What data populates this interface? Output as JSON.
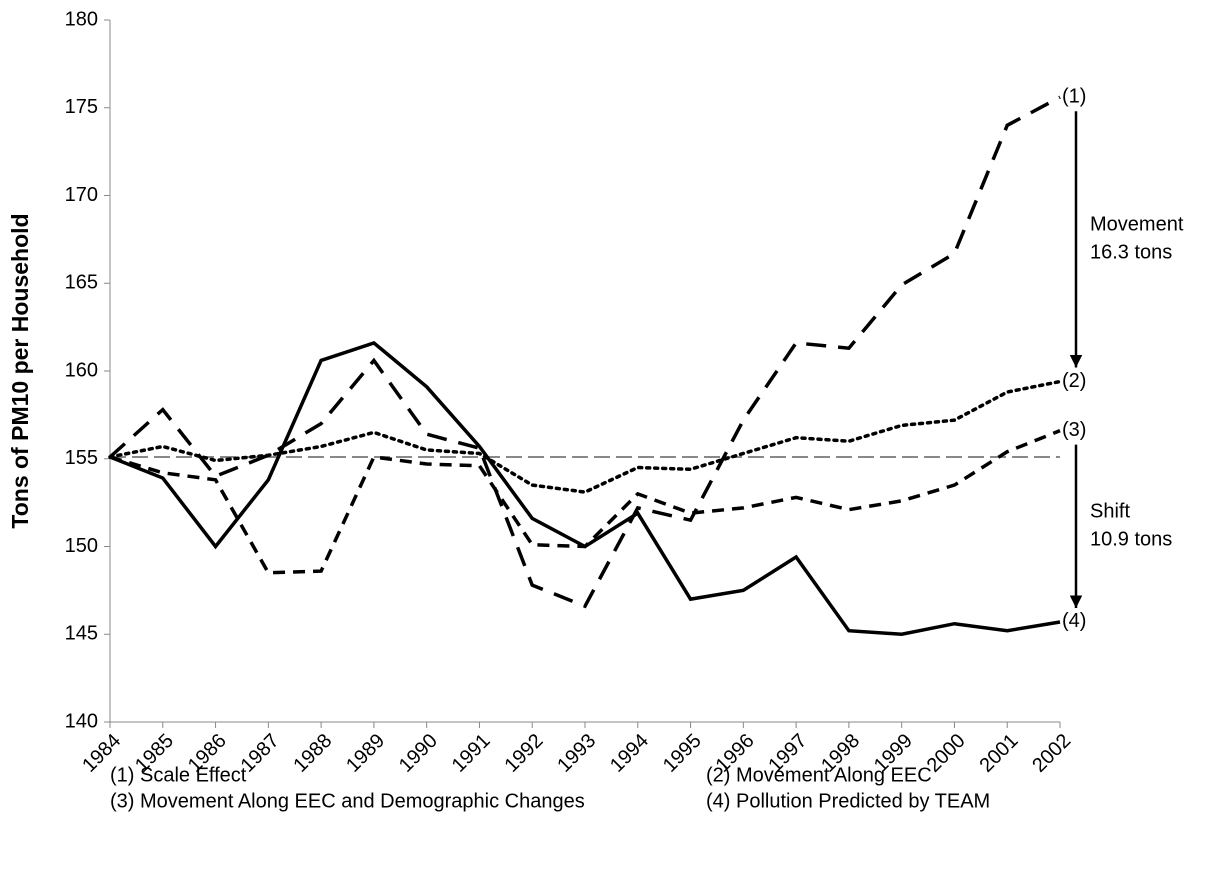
{
  "chart_data": {
    "type": "line",
    "y_label": "Tons of PM10 per Household",
    "categories": [
      "1984",
      "1985",
      "1986",
      "1987",
      "1988",
      "1989",
      "1990",
      "1991",
      "1992",
      "1993",
      "1994",
      "1995",
      "1996",
      "1997",
      "1998",
      "1999",
      "2000",
      "2001",
      "2002"
    ],
    "series": [
      {
        "name": "(1) Scale Effect",
        "end_label": "(1)",
        "color": "#000000",
        "line_style": "long-dash",
        "values": [
          155.1,
          157.8,
          154.0,
          155.2,
          157.0,
          160.6,
          156.4,
          155.6,
          147.8,
          146.6,
          152.2,
          151.5,
          157.2,
          161.6,
          161.3,
          164.9,
          166.7,
          174.0,
          175.6
        ]
      },
      {
        "name": "(2) Movement Along EEC",
        "end_label": "(2)",
        "color": "#000000",
        "line_style": "dotted",
        "values": [
          155.1,
          155.7,
          154.9,
          155.2,
          155.7,
          156.5,
          155.5,
          155.3,
          153.5,
          153.1,
          154.5,
          154.4,
          155.3,
          156.2,
          156.0,
          156.9,
          157.2,
          158.8,
          159.4
        ]
      },
      {
        "name": "(3) Movement Along EEC and Demographic Changes",
        "end_label": "(3)",
        "color": "#000000",
        "line_style": "short-dash",
        "values": [
          155.1,
          154.2,
          153.8,
          148.5,
          148.6,
          155.1,
          154.7,
          154.6,
          150.1,
          150.0,
          153.0,
          151.9,
          152.2,
          152.8,
          152.1,
          152.6,
          153.5,
          155.4,
          156.6
        ]
      },
      {
        "name": "(4) Pollution Predicted by TEAM",
        "end_label": "(4)",
        "color": "#000000",
        "line_style": "solid",
        "values": [
          155.1,
          153.9,
          150.0,
          153.8,
          160.6,
          161.6,
          159.1,
          155.7,
          151.6,
          150.0,
          151.9,
          147.0,
          147.5,
          149.4,
          145.2,
          145.0,
          145.6,
          145.2,
          145.7
        ]
      }
    ],
    "reference_line": {
      "value": 155.1,
      "color": "#888888"
    },
    "annotations": [
      {
        "lines": [
          "Movement",
          "16.3 tons"
        ],
        "from_series": 0,
        "to_series": 1
      },
      {
        "lines": [
          "Shift",
          "10.9 tons"
        ],
        "from_series": 2,
        "to_series": 3
      }
    ],
    "ylim": [
      140,
      180
    ],
    "yticks": [
      140,
      145,
      150,
      155,
      160,
      165,
      170,
      175,
      180
    ]
  }
}
